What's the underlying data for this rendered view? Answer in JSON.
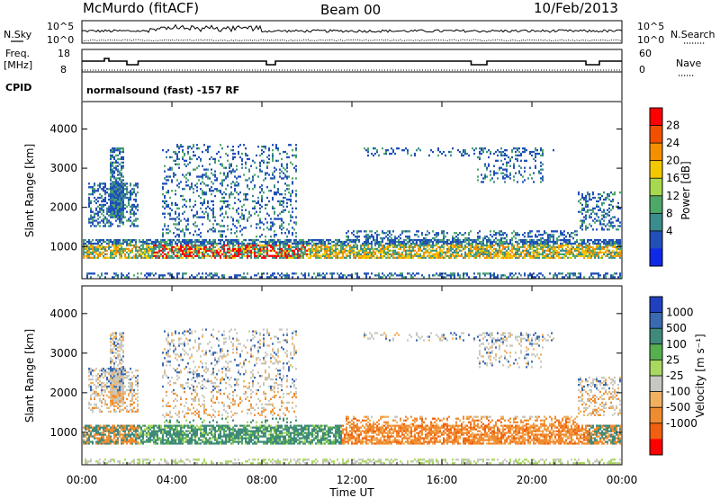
{
  "header": {
    "station": "McMurdo (fitACF)",
    "beam": "Beam 00",
    "date": "10/Feb/2013"
  },
  "top_panels": {
    "nsky_label": "N.Sky",
    "nsearch_label": "N.Search",
    "nsky_ticks": [
      "10^5",
      "10^0"
    ],
    "nsky_right_ticks": [
      "10^5",
      "10^0"
    ],
    "freq_label_1": "Freq.",
    "freq_label_2": "[MHz]",
    "freq_ticks": [
      "18",
      "8"
    ],
    "nave_ticks": [
      "60",
      "0"
    ],
    "nave_label": "Nave",
    "cpid_label": "CPID",
    "cpid_text": "normalsound (fast) -157 RF"
  },
  "chart_data": [
    {
      "type": "heatmap",
      "panel": "power",
      "ylabel": "Slant Range [km]",
      "yticks": [
        "1000",
        "2000",
        "3000",
        "4000"
      ],
      "ylim": [
        180,
        4700
      ],
      "x_ticks": [
        "00:00",
        "04:00",
        "08:00",
        "12:00",
        "16:00",
        "20:00",
        "00:00"
      ],
      "xlim_hours": [
        0,
        24
      ],
      "colorbar_label": "Power [dB]",
      "colorbar_ticks": [
        "28",
        "24",
        "20",
        "16",
        "12",
        "8",
        "4"
      ],
      "colorbar_colors": [
        "#ff0000",
        "#f05000",
        "#f49000",
        "#f4c800",
        "#a8d850",
        "#4ea868",
        "#3b8c8c",
        "#2050b8",
        "#1028e8"
      ],
      "dominant_echo_band_km": [
        700,
        1100
      ]
    },
    {
      "type": "heatmap",
      "panel": "velocity",
      "ylabel": "Slant Range [km]",
      "yticks": [
        "1000",
        "2000",
        "3000",
        "4000"
      ],
      "ylim": [
        180,
        4700
      ],
      "x_ticks": [
        "00:00",
        "04:00",
        "08:00",
        "12:00",
        "16:00",
        "20:00",
        "00:00"
      ],
      "xlim_hours": [
        0,
        24
      ],
      "xlabel": "Time UT",
      "colorbar_label": "Velocity [m s⁻¹]",
      "colorbar_ticks": [
        "1000",
        "500",
        "100",
        "25",
        "-25",
        "-100",
        "-500",
        "-1000"
      ],
      "colorbar_colors": [
        "#2040c0",
        "#3a6ab0",
        "#3f8a7a",
        "#56b050",
        "#a8d860",
        "#c8c8c0",
        "#f0b060",
        "#f08c30",
        "#f06010",
        "#ff0000"
      ],
      "dominant_echo_band_km": [
        700,
        1300
      ]
    }
  ],
  "colors": {
    "frame": "#000000",
    "background": "#ffffff"
  }
}
